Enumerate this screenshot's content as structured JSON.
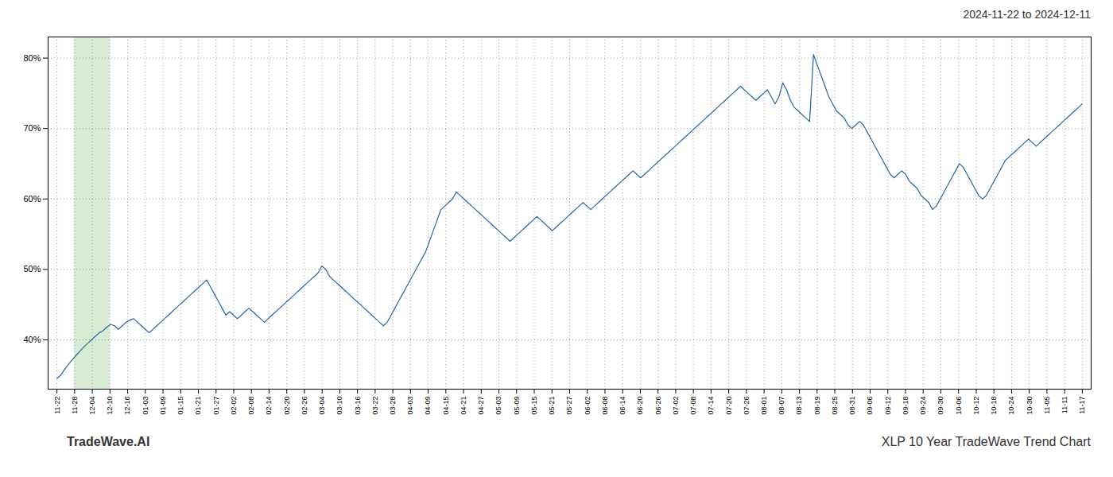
{
  "chart_data": {
    "type": "line",
    "title": "2024-11-22 to 2024-12-11",
    "annotations": [
      "TradeWave.AI",
      "XLP 10 Year TradeWave Trend Chart"
    ],
    "color": "#2266aa",
    "grid": true,
    "xlim": [
      -0.5,
      58.5
    ],
    "xticks": [
      {
        "value": 0,
        "label": "11-22"
      },
      {
        "value": 1,
        "label": "11-28"
      },
      {
        "value": 2,
        "label": "12-04"
      },
      {
        "value": 3,
        "label": "12-10"
      },
      {
        "value": 4,
        "label": "12-16"
      },
      {
        "value": 5,
        "label": "01-03"
      },
      {
        "value": 6,
        "label": "01-09"
      },
      {
        "value": 7,
        "label": "01-15"
      },
      {
        "value": 8,
        "label": "01-21"
      },
      {
        "value": 9,
        "label": "01-27"
      },
      {
        "value": 10,
        "label": "02-02"
      },
      {
        "value": 11,
        "label": "02-08"
      },
      {
        "value": 12,
        "label": "02-14"
      },
      {
        "value": 13,
        "label": "02-20"
      },
      {
        "value": 14,
        "label": "02-26"
      },
      {
        "value": 15,
        "label": "03-04"
      },
      {
        "value": 16,
        "label": "03-10"
      },
      {
        "value": 17,
        "label": "03-16"
      },
      {
        "value": 18,
        "label": "03-22"
      },
      {
        "value": 19,
        "label": "03-28"
      },
      {
        "value": 20,
        "label": "04-03"
      },
      {
        "value": 21,
        "label": "04-09"
      },
      {
        "value": 22,
        "label": "04-15"
      },
      {
        "value": 23,
        "label": "04-21"
      },
      {
        "value": 24,
        "label": "04-27"
      },
      {
        "value": 25,
        "label": "05-03"
      },
      {
        "value": 26,
        "label": "05-09"
      },
      {
        "value": 27,
        "label": "05-15"
      },
      {
        "value": 28,
        "label": "05-21"
      },
      {
        "value": 29,
        "label": "05-27"
      },
      {
        "value": 30,
        "label": "06-02"
      },
      {
        "value": 31,
        "label": "06-08"
      },
      {
        "value": 32,
        "label": "06-14"
      },
      {
        "value": 33,
        "label": "06-20"
      },
      {
        "value": 34,
        "label": "06-26"
      },
      {
        "value": 35,
        "label": "07-02"
      },
      {
        "value": 36,
        "label": "07-08"
      },
      {
        "value": 37,
        "label": "07-14"
      },
      {
        "value": 38,
        "label": "07-20"
      },
      {
        "value": 39,
        "label": "07-26"
      },
      {
        "value": 40,
        "label": "08-01"
      },
      {
        "value": 41,
        "label": "08-07"
      },
      {
        "value": 42,
        "label": "08-13"
      },
      {
        "value": 43,
        "label": "08-19"
      },
      {
        "value": 44,
        "label": "08-25"
      },
      {
        "value": 45,
        "label": "08-31"
      },
      {
        "value": 46,
        "label": "09-06"
      },
      {
        "value": 47,
        "label": "09-12"
      },
      {
        "value": 48,
        "label": "09-18"
      },
      {
        "value": 49,
        "label": "09-24"
      },
      {
        "value": 50,
        "label": "09-30"
      },
      {
        "value": 51,
        "label": "10-06"
      },
      {
        "value": 52,
        "label": "10-12"
      },
      {
        "value": 53,
        "label": "10-18"
      },
      {
        "value": 54,
        "label": "10-24"
      },
      {
        "value": 55,
        "label": "10-30"
      },
      {
        "value": 56,
        "label": "11-05"
      },
      {
        "value": 57,
        "label": "11-11"
      },
      {
        "value": 58,
        "label": "11-17"
      }
    ],
    "ylim": [
      33,
      83
    ],
    "yticks": [
      {
        "value": 40,
        "label": "40%"
      },
      {
        "value": 50,
        "label": "50%"
      },
      {
        "value": 60,
        "label": "60%"
      },
      {
        "value": 70,
        "label": "70%"
      },
      {
        "value": 80,
        "label": "80%"
      }
    ],
    "shaded_range": {
      "start": "11-28",
      "end": "12-10",
      "color": "#d8ecd4"
    },
    "values": [
      34.5,
      35.0,
      35.8,
      36.5,
      37.2,
      37.8,
      38.4,
      39.0,
      39.5,
      40.0,
      40.5,
      41.0,
      41.3,
      41.8,
      42.2,
      42.0,
      41.5,
      42.0,
      42.5,
      42.8,
      43.0,
      42.5,
      42.0,
      41.5,
      41.0,
      41.5,
      42.0,
      42.5,
      43.0,
      43.5,
      44.0,
      44.5,
      45.0,
      45.5,
      46.0,
      46.5,
      47.0,
      47.5,
      48.0,
      48.5,
      47.5,
      46.5,
      45.5,
      44.5,
      43.5,
      44.0,
      43.5,
      43.0,
      43.5,
      44.0,
      44.5,
      44.0,
      43.5,
      43.0,
      42.5,
      43.0,
      43.5,
      44.0,
      44.5,
      45.0,
      45.5,
      46.0,
      46.5,
      47.0,
      47.5,
      48.0,
      48.5,
      49.0,
      49.5,
      50.5,
      50.0,
      49.0,
      48.5,
      48.0,
      47.5,
      47.0,
      46.5,
      46.0,
      45.5,
      45.0,
      44.5,
      44.0,
      43.5,
      43.0,
      42.5,
      42.0,
      42.5,
      43.5,
      44.5,
      45.5,
      46.5,
      47.5,
      48.5,
      49.5,
      50.5,
      51.5,
      52.5,
      54.0,
      55.5,
      57.0,
      58.5,
      59.0,
      59.5,
      60.0,
      61.0,
      60.5,
      60.0,
      59.5,
      59.0,
      58.5,
      58.0,
      57.5,
      57.0,
      56.5,
      56.0,
      55.5,
      55.0,
      54.5,
      54.0,
      54.5,
      55.0,
      55.5,
      56.0,
      56.5,
      57.0,
      57.5,
      57.0,
      56.5,
      56.0,
      55.5,
      56.0,
      56.5,
      57.0,
      57.5,
      58.0,
      58.5,
      59.0,
      59.5,
      59.0,
      58.5,
      59.0,
      59.5,
      60.0,
      60.5,
      61.0,
      61.5,
      62.0,
      62.5,
      63.0,
      63.5,
      64.0,
      63.5,
      63.0,
      63.5,
      64.0,
      64.5,
      65.0,
      65.5,
      66.0,
      66.5,
      67.0,
      67.5,
      68.0,
      68.5,
      69.0,
      69.5,
      70.0,
      70.5,
      71.0,
      71.5,
      72.0,
      72.5,
      73.0,
      73.5,
      74.0,
      74.5,
      75.0,
      75.5,
      76.0,
      75.5,
      75.0,
      74.5,
      74.0,
      74.5,
      75.0,
      75.5,
      74.5,
      73.5,
      74.5,
      76.5,
      75.5,
      74.0,
      73.0,
      72.5,
      72.0,
      71.5,
      71.0,
      80.5,
      79.0,
      77.5,
      76.0,
      74.5,
      73.5,
      72.5,
      72.0,
      71.5,
      70.5,
      70.0,
      70.5,
      71.0,
      70.5,
      69.5,
      68.5,
      67.5,
      66.5,
      65.5,
      64.5,
      63.5,
      63.0,
      63.5,
      64.0,
      63.5,
      62.5,
      62.0,
      61.5,
      60.5,
      60.0,
      59.5,
      58.5,
      59.0,
      60.0,
      61.0,
      62.0,
      63.0,
      64.0,
      65.0,
      64.5,
      63.5,
      62.5,
      61.5,
      60.5,
      60.0,
      60.5,
      61.5,
      62.5,
      63.5,
      64.5,
      65.5,
      66.0,
      66.5,
      67.0,
      67.5,
      68.0,
      68.5,
      68.0,
      67.5,
      68.0,
      68.5,
      69.0,
      69.5,
      70.0,
      70.5,
      71.0,
      71.5,
      72.0,
      72.5,
      73.0,
      73.5
    ]
  }
}
